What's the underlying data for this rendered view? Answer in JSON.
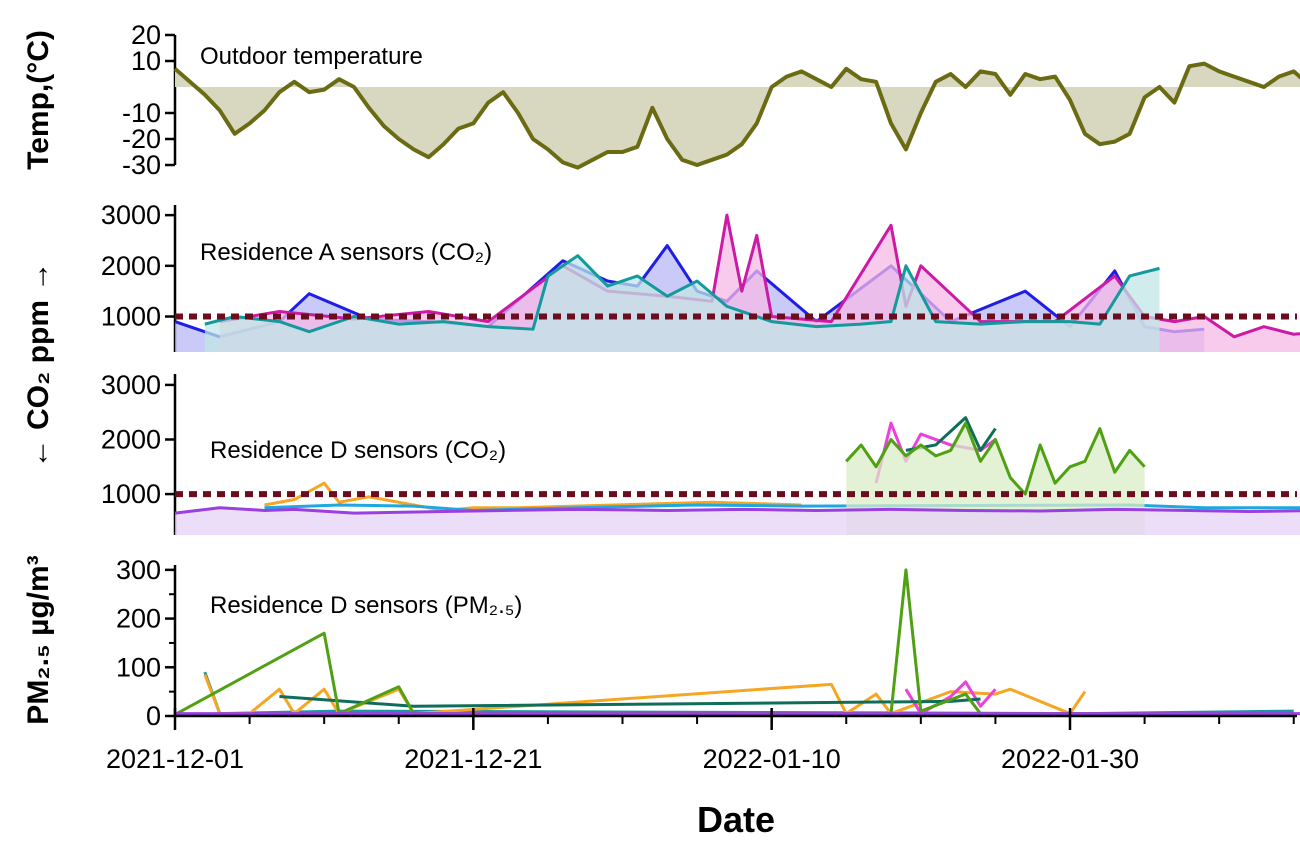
{
  "chart_data": [
    {
      "type": "area",
      "panel": "temperature",
      "annotation": "Outdoor temperature",
      "ylabel": "Temp,(°C)",
      "yticks": [
        "20",
        "10",
        "-10",
        "-20",
        "-30"
      ],
      "ylim": [
        -30,
        20
      ],
      "fill_baseline": 0,
      "colors": {
        "line": "#6b6b14",
        "fill": "#d8d8c0"
      },
      "series": [
        {
          "x": [
            "2021-12-01",
            "2021-12-02",
            "2021-12-03",
            "2021-12-04",
            "2021-12-05",
            "2021-12-06",
            "2021-12-07",
            "2021-12-08",
            "2021-12-09",
            "2021-12-10",
            "2021-12-11",
            "2021-12-12",
            "2021-12-13",
            "2021-12-14",
            "2021-12-15",
            "2021-12-16",
            "2021-12-17",
            "2021-12-18",
            "2021-12-19",
            "2021-12-20",
            "2021-12-21",
            "2021-12-22",
            "2021-12-23",
            "2021-12-24",
            "2021-12-25",
            "2021-12-26",
            "2021-12-27",
            "2021-12-28",
            "2021-12-29",
            "2021-12-30",
            "2021-12-31",
            "2022-01-01",
            "2022-01-02",
            "2022-01-03",
            "2022-01-04",
            "2022-01-05",
            "2022-01-06",
            "2022-01-07",
            "2022-01-08",
            "2022-01-09",
            "2022-01-10",
            "2022-01-11",
            "2022-01-12",
            "2022-01-13",
            "2022-01-14",
            "2022-01-15",
            "2022-01-16",
            "2022-01-17",
            "2022-01-18",
            "2022-01-19",
            "2022-01-20",
            "2022-01-21",
            "2022-01-22",
            "2022-01-23",
            "2022-01-24",
            "2022-01-25",
            "2022-01-26",
            "2022-01-27",
            "2022-01-28",
            "2022-01-29",
            "2022-01-30",
            "2022-01-31",
            "2022-02-01",
            "2022-02-02",
            "2022-02-03",
            "2022-02-04",
            "2022-02-05",
            "2022-02-06",
            "2022-02-07",
            "2022-02-08",
            "2022-02-09",
            "2022-02-10",
            "2022-02-11",
            "2022-02-12",
            "2022-02-13",
            "2022-02-14",
            "2022-02-15",
            "2022-02-16"
          ],
          "y": [
            7,
            2,
            -3,
            -9,
            -18,
            -14,
            -9,
            -2,
            2,
            -2,
            -1,
            3,
            0,
            -8,
            -15,
            -20,
            -24,
            -27,
            -22,
            -16,
            -14,
            -6,
            -2,
            -10,
            -20,
            -24,
            -29,
            -31,
            -28,
            -25,
            -25,
            -23,
            -8,
            -20,
            -28,
            -30,
            -28,
            -26,
            -22,
            -14,
            0,
            4,
            6,
            3,
            0,
            7,
            3,
            2,
            -14,
            -24,
            -10,
            2,
            5,
            0,
            6,
            5,
            -3,
            5,
            3,
            4,
            -5,
            -18,
            -22,
            -21,
            -18,
            -4,
            0,
            -6,
            8,
            9,
            6,
            4,
            2,
            0,
            4,
            6,
            1,
            -2
          ]
        }
      ]
    },
    {
      "type": "area",
      "panel": "residence-a-co2",
      "annotation": "Residence A sensors (CO₂)",
      "ylabel": "CO₂ ppm",
      "yticks": [
        "3000",
        "2000",
        "1000"
      ],
      "ylim": [
        300,
        3200
      ],
      "threshold": 1000,
      "threshold_color": "#6b0d1e",
      "series": [
        {
          "color": "#1e1ee6",
          "fill": "#b8b8f5",
          "x": [
            "2021-12-01",
            "2021-12-02",
            "2021-12-04",
            "2021-12-08",
            "2021-12-10",
            "2021-12-14",
            "2021-12-18",
            "2021-12-22",
            "2021-12-27",
            "2021-12-30",
            "2022-01-01",
            "2022-01-03",
            "2022-01-05",
            "2022-01-07",
            "2022-01-09",
            "2022-01-13",
            "2022-01-18",
            "2022-01-22",
            "2022-01-27",
            "2022-01-30",
            "2022-02-02",
            "2022-02-04",
            "2022-02-06",
            "2022-02-08"
          ],
          "y": [
            900,
            800,
            600,
            900,
            1450,
            950,
            900,
            800,
            2100,
            1700,
            1600,
            2400,
            1500,
            1300,
            1900,
            900,
            2000,
            900,
            1500,
            800,
            1900,
            800,
            700,
            750
          ]
        },
        {
          "color": "#cc1aa5",
          "fill": "#f5b8e6",
          "x": [
            "2021-12-04",
            "2021-12-08",
            "2021-12-13",
            "2021-12-18",
            "2021-12-22",
            "2021-12-27",
            "2021-12-30",
            "2022-01-03",
            "2022-01-06",
            "2022-01-07",
            "2022-01-08",
            "2022-01-09",
            "2022-01-10",
            "2022-01-14",
            "2022-01-18",
            "2022-01-19",
            "2022-01-20",
            "2022-01-24",
            "2022-01-29",
            "2022-02-02",
            "2022-02-04",
            "2022-02-06",
            "2022-02-08",
            "2022-02-10",
            "2022-02-12",
            "2022-02-14",
            "2022-02-16"
          ],
          "y": [
            900,
            1100,
            950,
            1100,
            900,
            2000,
            1500,
            1400,
            1300,
            3000,
            1500,
            2600,
            1000,
            900,
            2800,
            1200,
            2000,
            900,
            900,
            1800,
            1000,
            900,
            1000,
            600,
            800,
            650,
            700
          ]
        },
        {
          "color": "#14999c",
          "fill": "#c0e6e6",
          "x": [
            "2021-12-03",
            "2021-12-05",
            "2021-12-08",
            "2021-12-10",
            "2021-12-13",
            "2021-12-16",
            "2021-12-19",
            "2021-12-22",
            "2021-12-25",
            "2021-12-26",
            "2021-12-28",
            "2021-12-30",
            "2022-01-01",
            "2022-01-03",
            "2022-01-05",
            "2022-01-07",
            "2022-01-10",
            "2022-01-13",
            "2022-01-16",
            "2022-01-18",
            "2022-01-19",
            "2022-01-21",
            "2022-01-24",
            "2022-01-27",
            "2022-01-30",
            "2022-02-01",
            "2022-02-03",
            "2022-02-05"
          ],
          "y": [
            850,
            1000,
            900,
            700,
            1000,
            850,
            900,
            800,
            750,
            1800,
            2200,
            1600,
            1800,
            1400,
            1700,
            1200,
            900,
            800,
            850,
            900,
            2000,
            900,
            850,
            900,
            900,
            850,
            1800,
            1950
          ]
        }
      ]
    },
    {
      "type": "area",
      "panel": "residence-d-co2",
      "annotation": "Residence D sensors (CO₂)",
      "ylabel": "CO₂ ppm",
      "yticks": [
        "3000",
        "2000",
        "1000"
      ],
      "ylim": [
        250,
        3200
      ],
      "threshold": 1000,
      "threshold_color": "#6b0d1e",
      "series": [
        {
          "color": "#f5a623",
          "x": [
            "2021-12-07",
            "2021-12-09",
            "2021-12-11",
            "2021-12-12",
            "2021-12-14",
            "2021-12-17",
            "2021-12-19",
            "2021-12-21",
            "2021-12-24",
            "2022-01-06",
            "2022-01-12"
          ],
          "y": [
            800,
            900,
            1200,
            850,
            950,
            800,
            700,
            750,
            750,
            850,
            800
          ]
        },
        {
          "color": "#1fa7e0",
          "x": [
            "2021-12-07",
            "2021-12-12",
            "2021-12-17",
            "2021-12-21",
            "2021-12-28",
            "2022-01-05",
            "2022-01-12",
            "2022-02-03",
            "2022-02-08",
            "2022-02-16"
          ],
          "y": [
            750,
            800,
            780,
            700,
            750,
            800,
            780,
            800,
            750,
            750
          ]
        },
        {
          "color": "#ee3fdc",
          "x": [
            "2022-01-17",
            "2022-01-18",
            "2022-01-19",
            "2022-01-20",
            "2022-01-22",
            "2022-01-24",
            "2022-01-25"
          ],
          "y": [
            1200,
            2300,
            1600,
            2100,
            1900,
            1800,
            2000
          ]
        },
        {
          "color": "#0f6e5a",
          "x": [
            "2022-01-19",
            "2022-01-21",
            "2022-01-23",
            "2022-01-24",
            "2022-01-25"
          ],
          "y": [
            1800,
            1900,
            2400,
            1800,
            2200
          ]
        },
        {
          "color": "#50a014",
          "fill": "#d9ecc6",
          "x": [
            "2022-01-15",
            "2022-01-16",
            "2022-01-17",
            "2022-01-18",
            "2022-01-19",
            "2022-01-20",
            "2022-01-21",
            "2022-01-22",
            "2022-01-23",
            "2022-01-24",
            "2022-01-25",
            "2022-01-26",
            "2022-01-27",
            "2022-01-28",
            "2022-01-29",
            "2022-01-30",
            "2022-01-31",
            "2022-02-01",
            "2022-02-02",
            "2022-02-03",
            "2022-02-04"
          ],
          "y": [
            1600,
            1900,
            1500,
            2000,
            1700,
            1900,
            1700,
            1800,
            2300,
            1600,
            2000,
            1300,
            1000,
            1900,
            1200,
            1500,
            1600,
            2200,
            1400,
            1800,
            1500
          ]
        },
        {
          "color": "#9a3fe0",
          "fill": "#e6d1f7",
          "x": [
            "2021-12-01",
            "2021-12-04",
            "2021-12-07",
            "2021-12-09",
            "2021-12-13",
            "2021-12-19",
            "2021-12-23",
            "2021-12-28",
            "2022-01-03",
            "2022-01-08",
            "2022-01-13",
            "2022-01-18",
            "2022-01-23",
            "2022-01-28",
            "2022-02-02",
            "2022-02-07",
            "2022-02-11",
            "2022-02-16"
          ],
          "y": [
            650,
            750,
            700,
            720,
            650,
            680,
            700,
            720,
            700,
            720,
            700,
            720,
            700,
            690,
            720,
            700,
            680,
            700
          ]
        }
      ]
    },
    {
      "type": "line",
      "panel": "residence-d-pm25",
      "annotation": "Residence D sensors (PM₂.₅)",
      "ylabel": "PM₂.₅ µg/m³",
      "yticks": [
        "300",
        "200",
        "100",
        "0"
      ],
      "ylim": [
        0,
        310
      ],
      "xlabel": "Date",
      "xticks": [
        "2021-12-01",
        "2021-12-21",
        "2022-01-10",
        "2022-01-30"
      ],
      "series": [
        {
          "color": "#14999c",
          "x": [
            "2021-12-03",
            "2021-12-04",
            "2021-12-12",
            "2022-01-31",
            "2022-02-14"
          ],
          "y": [
            90,
            5,
            10,
            5,
            10
          ]
        },
        {
          "color": "#f5a623",
          "x": [
            "2021-12-03",
            "2021-12-04",
            "2021-12-06",
            "2021-12-08",
            "2021-12-09",
            "2021-12-11",
            "2021-12-12",
            "2021-12-16",
            "2021-12-17",
            "2022-01-14",
            "2022-01-15",
            "2022-01-17",
            "2022-01-18",
            "2022-01-22",
            "2022-01-25",
            "2022-01-26",
            "2022-01-30",
            "2022-01-31"
          ],
          "y": [
            85,
            5,
            5,
            55,
            5,
            55,
            5,
            55,
            5,
            65,
            5,
            45,
            5,
            50,
            45,
            55,
            5,
            50
          ]
        },
        {
          "color": "#ee3fdc",
          "x": [
            "2022-01-19",
            "2022-01-20",
            "2022-01-22",
            "2022-01-23",
            "2022-01-24",
            "2022-01-25"
          ],
          "y": [
            55,
            5,
            40,
            70,
            20,
            55
          ]
        },
        {
          "color": "#0f6e5a",
          "x": [
            "2021-12-08",
            "2021-12-17",
            "2022-01-22",
            "2022-01-24"
          ],
          "y": [
            40,
            20,
            30,
            35
          ]
        },
        {
          "color": "#50a014",
          "x": [
            "2021-12-01",
            "2021-12-11",
            "2021-12-12",
            "2021-12-16",
            "2021-12-17",
            "2021-12-22",
            "2022-01-18",
            "2022-01-19",
            "2022-01-20",
            "2022-01-23",
            "2022-01-24",
            "2022-02-05"
          ],
          "y": [
            3,
            170,
            5,
            60,
            5,
            5,
            5,
            300,
            10,
            45,
            5,
            5
          ]
        },
        {
          "color": "#9a3fe0",
          "x": [
            "2021-12-01",
            "2021-12-21",
            "2022-01-10",
            "2022-01-30",
            "2022-02-16"
          ],
          "y": [
            5,
            5,
            5,
            5,
            5
          ]
        }
      ]
    }
  ]
}
